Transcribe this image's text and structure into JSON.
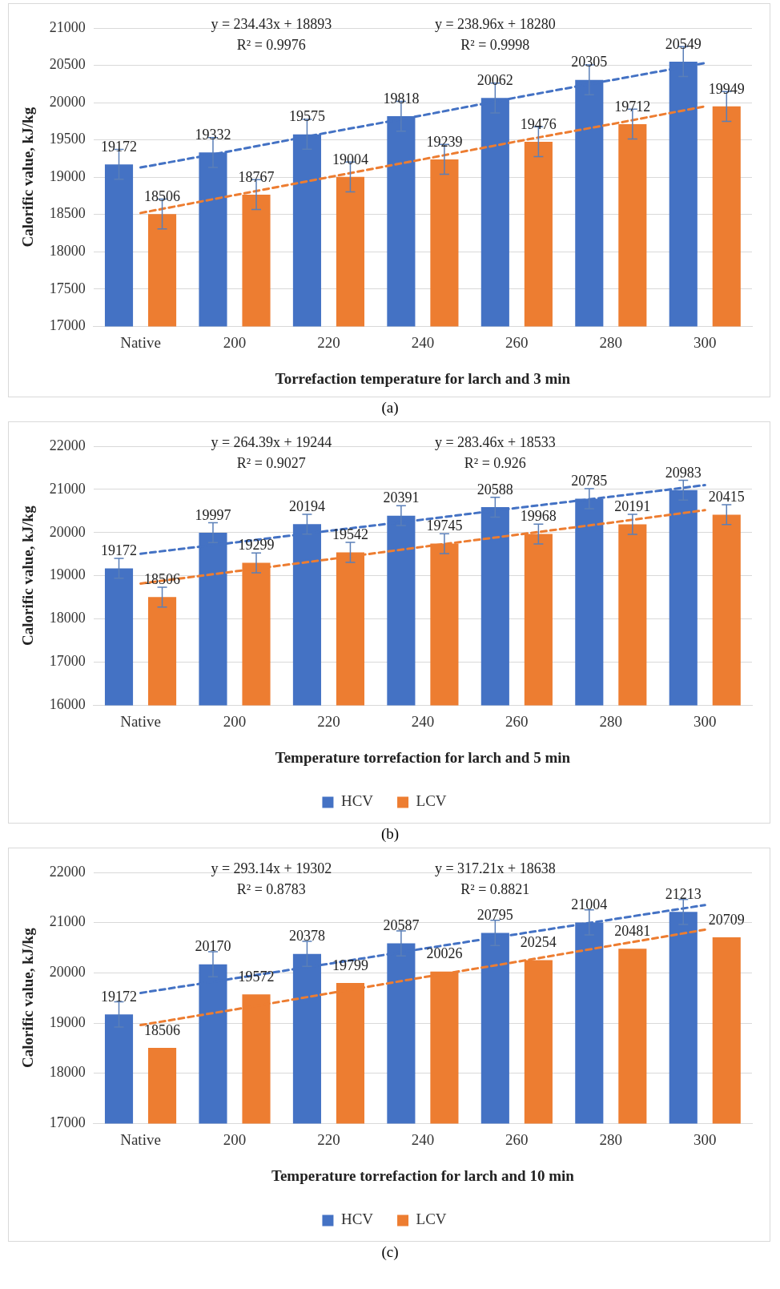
{
  "chart_data": [
    {
      "type": "bar",
      "xlabel": "Torrefaction temperature for larch and 3 min",
      "ylabel": "Calorific value, kJ/kg",
      "categories": [
        "Native",
        "200",
        "220",
        "240",
        "260",
        "280",
        "300"
      ],
      "ylim": [
        17000,
        21000
      ],
      "yticks": [
        17000,
        17500,
        18000,
        18500,
        19000,
        19500,
        20000,
        20500,
        21000
      ],
      "grid": "y",
      "legend": false,
      "marker": "none",
      "annotations": [
        "y = 234.43x + 18893",
        "R² = 0.9976",
        "y = 238.96x + 18280",
        "R² = 0.9998",
        "(a)"
      ],
      "series": [
        {
          "color": "#4472c4",
          "values": [
            19172,
            19332,
            19575,
            19818,
            20062,
            20305,
            20549
          ],
          "value_labels": [
            "19172",
            "19332",
            "19575",
            "19818",
            "20062",
            "20305",
            "20549"
          ],
          "errors": [
            200,
            200,
            200,
            200,
            200,
            200,
            200
          ]
        },
        {
          "color": "#ed7d31",
          "values": [
            18506,
            18767,
            19004,
            19239,
            19476,
            19712,
            19949
          ],
          "value_labels": [
            "18506",
            "18767",
            "19004",
            "19239",
            "19476",
            "19712",
            "19949"
          ],
          "errors": [
            200,
            200,
            200,
            200,
            200,
            200,
            200
          ]
        },
        {
          "type": "line",
          "color": "#4472c4",
          "line_style": "dashed",
          "values": [
            19130,
            19360,
            19600,
            19830,
            20070,
            20300,
            20530
          ]
        },
        {
          "type": "line",
          "color": "#ed7d31",
          "line_style": "dashed",
          "values": [
            18520,
            18760,
            19000,
            19240,
            19480,
            19710,
            19950
          ]
        }
      ]
    },
    {
      "type": "bar",
      "xlabel": "Temperature torrefaction for larch and 5 min",
      "ylabel": "Calorific value, kJ/kg",
      "categories": [
        "Native",
        "200",
        "220",
        "240",
        "260",
        "280",
        "300"
      ],
      "ylim": [
        16000,
        22000
      ],
      "yticks": [
        16000,
        17000,
        18000,
        19000,
        20000,
        21000,
        22000
      ],
      "grid": "y",
      "legend": "bottom",
      "marker": "none",
      "annotations": [
        "y = 264.39x + 19244",
        "R² = 0.9027",
        "y = 283.46x + 18533",
        "R² = 0.926",
        "(b)"
      ],
      "series": [
        {
          "name": "HCV",
          "color": "#4472c4",
          "values": [
            19172,
            19997,
            20194,
            20391,
            20588,
            20785,
            20983
          ],
          "value_labels": [
            "19172",
            "19997",
            "20194",
            "20391",
            "20588",
            "20785",
            "20983"
          ],
          "errors": [
            230,
            230,
            230,
            230,
            230,
            230,
            230
          ]
        },
        {
          "name": "LCV",
          "color": "#ed7d31",
          "values": [
            18506,
            19299,
            19542,
            19745,
            19968,
            20191,
            20415
          ],
          "value_labels": [
            "18506",
            "19299",
            "19542",
            "19745",
            "19968",
            "20191",
            "20415"
          ],
          "errors": [
            230,
            230,
            230,
            230,
            230,
            230,
            230
          ]
        },
        {
          "type": "line",
          "color": "#4472c4",
          "line_style": "dashed",
          "values": [
            19510,
            19770,
            20040,
            20300,
            20570,
            20830,
            21100
          ]
        },
        {
          "type": "line",
          "color": "#ed7d31",
          "line_style": "dashed",
          "values": [
            18820,
            19100,
            19380,
            19670,
            19950,
            20230,
            20520
          ]
        }
      ]
    },
    {
      "type": "bar",
      "xlabel": "Temperature torrefaction for larch and 10 min",
      "ylabel": "Calorific value, kJ/kg",
      "categories": [
        "Native",
        "200",
        "220",
        "240",
        "260",
        "280",
        "300"
      ],
      "ylim": [
        17000,
        22000
      ],
      "yticks": [
        17000,
        18000,
        19000,
        20000,
        21000,
        22000
      ],
      "grid": "y",
      "legend": "bottom",
      "marker": "none",
      "annotations": [
        "y = 293.14x + 19302",
        "R² = 0.8783",
        "y = 317.21x + 18638",
        "R² = 0.8821",
        "(c)"
      ],
      "series": [
        {
          "name": "HCV",
          "color": "#4472c4",
          "values": [
            19172,
            20170,
            20378,
            20587,
            20795,
            21004,
            21213
          ],
          "value_labels": [
            "19172",
            "20170",
            "20378",
            "20587",
            "20795",
            "21004",
            "21213"
          ],
          "errors": [
            250,
            250,
            250,
            250,
            250,
            250,
            250
          ]
        },
        {
          "name": "LCV",
          "color": "#ed7d31",
          "values": [
            18506,
            19572,
            19799,
            20026,
            20254,
            20481,
            20709
          ],
          "value_labels": [
            "18506",
            "19572",
            "19799",
            "20026",
            "20254",
            "20481",
            "20709"
          ]
        },
        {
          "type": "line",
          "color": "#4472c4",
          "line_style": "dashed",
          "values": [
            19600,
            19890,
            20180,
            20480,
            20770,
            21060,
            21350
          ]
        },
        {
          "type": "line",
          "color": "#ed7d31",
          "line_style": "dashed",
          "values": [
            18960,
            19270,
            19590,
            19910,
            20220,
            20540,
            20860
          ]
        }
      ]
    }
  ]
}
